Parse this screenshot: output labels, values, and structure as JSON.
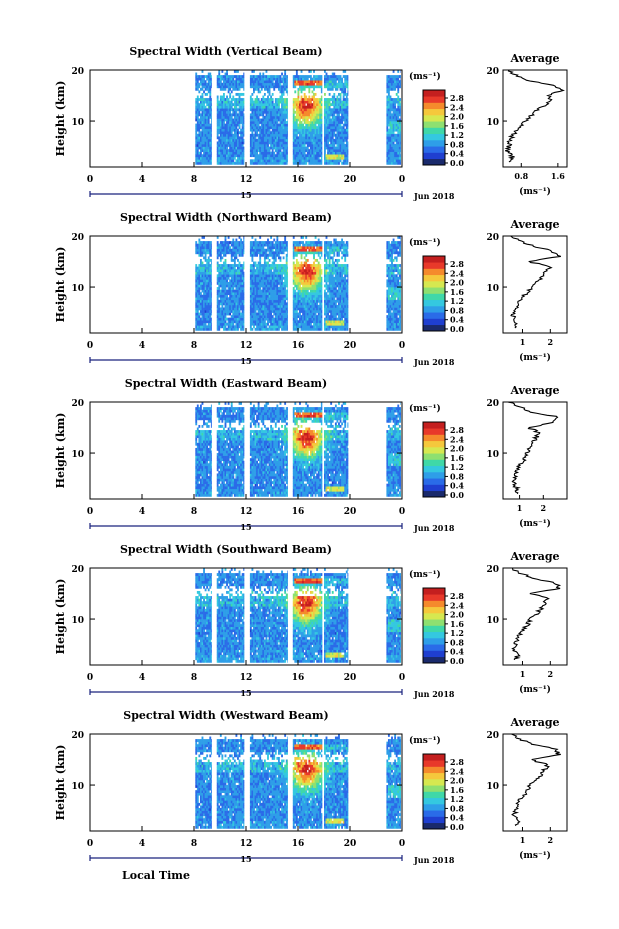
{
  "chart_data": [
    {
      "type": "heatmap",
      "title": "Spectral Width (Vertical Beam)",
      "ylabel": "Height (km)",
      "yticks": [
        "20",
        "10"
      ],
      "xticks": [
        "0",
        "4",
        "8",
        "12",
        "16",
        "20",
        "0"
      ],
      "xlim": [
        0,
        24
      ],
      "ylim": [
        1,
        20
      ],
      "date_label": "15",
      "month_label": "Jun 2018",
      "colorbar": {
        "label": "(ms⁻¹)",
        "ticks": [
          "2.8",
          "2.4",
          "2.0",
          "1.6",
          "1.2",
          "0.8",
          "0.4",
          "0.0"
        ]
      },
      "profile": {
        "title": "Average",
        "xticks": [
          "0.8",
          "1.6"
        ],
        "xlabel": "(ms⁻¹)",
        "yticks": [
          "20",
          "10"
        ],
        "xlim": [
          0.4,
          1.8
        ],
        "height": [
          2,
          3,
          4,
          5,
          6,
          7,
          8,
          9,
          10,
          11,
          12,
          13,
          14,
          15,
          16,
          17,
          18,
          19,
          20
        ],
        "width": [
          0.55,
          0.6,
          0.5,
          0.52,
          0.55,
          0.6,
          0.7,
          0.8,
          0.9,
          1.0,
          1.1,
          1.3,
          1.45,
          1.4,
          1.7,
          1.55,
          0.9,
          0.7,
          0.5
        ]
      }
    },
    {
      "type": "heatmap",
      "title": "Spectral Width (Northward Beam)",
      "ylabel": "Height (km)",
      "yticks": [
        "20",
        "10"
      ],
      "xticks": [
        "0",
        "4",
        "8",
        "12",
        "16",
        "20",
        "0"
      ],
      "xlim": [
        0,
        24
      ],
      "ylim": [
        1,
        20
      ],
      "date_label": "15",
      "month_label": "Jun 2018",
      "colorbar": {
        "label": "(ms⁻¹)",
        "ticks": [
          "2.8",
          "2.4",
          "2.0",
          "1.6",
          "1.2",
          "0.8",
          "0.4",
          "0.0"
        ]
      },
      "profile": {
        "title": "Average",
        "xticks": [
          "1",
          "2"
        ],
        "xlabel": "(ms⁻¹)",
        "yticks": [
          "20",
          "10"
        ],
        "xlim": [
          0.3,
          2.6
        ],
        "height": [
          2,
          3,
          4,
          5,
          6,
          7,
          8,
          9,
          10,
          11,
          12,
          13,
          14,
          15,
          16,
          17,
          18,
          19,
          20
        ],
        "width": [
          0.7,
          0.8,
          0.65,
          0.7,
          0.75,
          0.85,
          1.0,
          1.2,
          1.3,
          1.5,
          1.7,
          1.8,
          2.0,
          1.2,
          2.3,
          2.1,
          1.4,
          0.9,
          0.6
        ]
      }
    },
    {
      "type": "heatmap",
      "title": "Spectral Width (Eastward Beam)",
      "ylabel": "Height (km)",
      "yticks": [
        "20",
        "10"
      ],
      "xticks": [
        "0",
        "4",
        "8",
        "12",
        "16",
        "20",
        "0"
      ],
      "xlim": [
        0,
        24
      ],
      "ylim": [
        1,
        20
      ],
      "date_label": "15",
      "month_label": "Jun 2018",
      "colorbar": {
        "label": "(ms⁻¹)",
        "ticks": [
          "2.8",
          "2.4",
          "2.0",
          "1.6",
          "1.2",
          "0.8",
          "0.4",
          "0.0"
        ]
      },
      "profile": {
        "title": "Average",
        "xticks": [
          "1",
          "2"
        ],
        "xlabel": "(ms⁻¹)",
        "yticks": [
          "20",
          "10"
        ],
        "xlim": [
          0.3,
          3.0
        ],
        "height": [
          2,
          3,
          4,
          5,
          6,
          7,
          8,
          9,
          10,
          11,
          12,
          13,
          14,
          15,
          16,
          17,
          18,
          19,
          20
        ],
        "width": [
          0.8,
          0.9,
          0.75,
          0.8,
          0.85,
          0.95,
          1.1,
          1.2,
          1.3,
          1.45,
          1.6,
          1.7,
          1.8,
          1.4,
          2.4,
          2.7,
          1.5,
          1.0,
          0.6
        ]
      }
    },
    {
      "type": "heatmap",
      "title": "Spectral Width (Southward Beam)",
      "ylabel": "Height (km)",
      "yticks": [
        "20",
        "10"
      ],
      "xticks": [
        "0",
        "4",
        "8",
        "12",
        "16",
        "20",
        "0"
      ],
      "xlim": [
        0,
        24
      ],
      "ylim": [
        1,
        20
      ],
      "date_label": "15",
      "month_label": "Jun 2018",
      "colorbar": {
        "label": "(ms⁻¹)",
        "ticks": [
          "2.8",
          "2.4",
          "2.0",
          "1.6",
          "1.2",
          "0.8",
          "0.4",
          "0.0"
        ]
      },
      "profile": {
        "title": "Average",
        "xticks": [
          "1",
          "2"
        ],
        "xlabel": "(ms⁻¹)",
        "yticks": [
          "20",
          "10"
        ],
        "xlim": [
          0.3,
          2.6
        ],
        "height": [
          2,
          3,
          4,
          5,
          6,
          7,
          8,
          9,
          10,
          11,
          12,
          13,
          14,
          15,
          16,
          17,
          18,
          19,
          20
        ],
        "width": [
          0.75,
          0.85,
          0.7,
          0.75,
          0.8,
          0.9,
          1.05,
          1.2,
          1.3,
          1.5,
          1.65,
          1.8,
          1.9,
          1.3,
          2.3,
          2.2,
          1.4,
          0.9,
          0.6
        ]
      }
    },
    {
      "type": "heatmap",
      "title": "Spectral Width (Westward Beam)",
      "ylabel": "Height (km)",
      "yticks": [
        "20",
        "10"
      ],
      "xticks": [
        "0",
        "4",
        "8",
        "12",
        "16",
        "20",
        "0"
      ],
      "xlim": [
        0,
        24
      ],
      "ylim": [
        1,
        20
      ],
      "date_label": "15",
      "month_label": "Jun 2018",
      "colorbar": {
        "label": "(ms⁻¹)",
        "ticks": [
          "2.8",
          "2.4",
          "2.0",
          "1.6",
          "1.2",
          "0.8",
          "0.4",
          "0.0"
        ]
      },
      "profile": {
        "title": "Average",
        "xticks": [
          "1",
          "2"
        ],
        "xlabel": "(ms⁻¹)",
        "yticks": [
          "20",
          "10"
        ],
        "xlim": [
          0.3,
          2.6
        ],
        "height": [
          2,
          3,
          4,
          5,
          6,
          7,
          8,
          9,
          10,
          11,
          12,
          13,
          14,
          15,
          16,
          17,
          18,
          19,
          20
        ],
        "width": [
          0.75,
          0.85,
          0.7,
          0.75,
          0.8,
          0.9,
          1.05,
          1.2,
          1.3,
          1.5,
          1.65,
          1.8,
          1.9,
          1.3,
          2.3,
          2.2,
          1.4,
          0.9,
          0.6
        ]
      }
    }
  ],
  "xlabel": "Local Time",
  "colors": {
    "palette": [
      "#1a2a6c",
      "#1f3fd0",
      "#2a6be8",
      "#2e9ee8",
      "#34c8e0",
      "#3fd8a8",
      "#8ee070",
      "#d6e850",
      "#f5c83c",
      "#f58a2c",
      "#e8392a",
      "#c41f1f"
    ],
    "gap": "#ffffff",
    "axis": "#000000",
    "date_bar": "#1a237e"
  }
}
